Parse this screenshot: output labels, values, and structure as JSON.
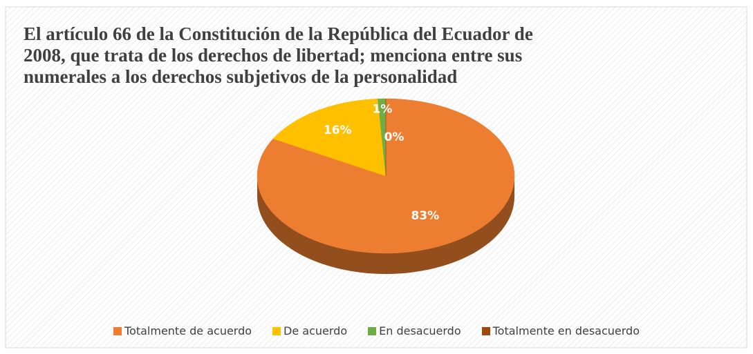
{
  "chart_data": {
    "type": "pie",
    "title": "El artículo 66 de la Constitución de la República del Ecuador de 2008, que trata de los derechos de libertad; menciona entre sus numerales a los derechos subjetivos de la personalidad",
    "categories": [
      "Totalmente de acuerdo",
      "De acuerdo",
      "En desacuerdo",
      "Totalmente en desacuerdo"
    ],
    "values": [
      83,
      16,
      1,
      0
    ],
    "value_labels": [
      "83%",
      "16%",
      "1%",
      "0%"
    ],
    "colors": [
      "#ED7D31",
      "#FFC000",
      "#70AD47",
      "#9E480E"
    ],
    "legend": "bottom"
  }
}
